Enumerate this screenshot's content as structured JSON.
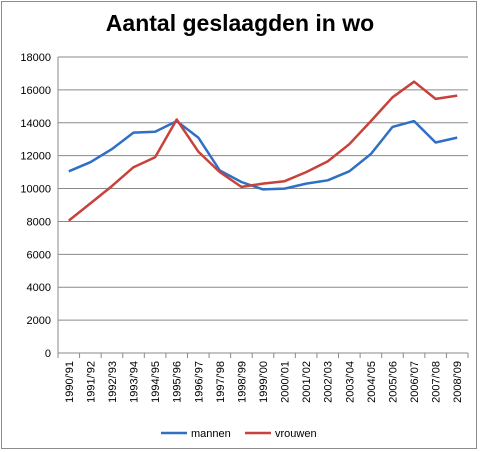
{
  "chart_data": {
    "type": "line",
    "title": "Aantal geslaagden in wo",
    "xlabel": "",
    "ylabel": "",
    "categories": [
      "1990/'91",
      "1991/'92",
      "1992/'93",
      "1993/'94",
      "1994/'95",
      "1995/'96",
      "1996/'97",
      "1997/'98",
      "1998/'99",
      "1999/'00",
      "2000/'01",
      "2001/'02",
      "2002/'03",
      "2003/'04",
      "2004/'05",
      "2005/'06",
      "2006/'07",
      "2007/'08",
      "2008/'09"
    ],
    "ylim": [
      0,
      18000
    ],
    "yticks": [
      0,
      2000,
      4000,
      6000,
      8000,
      10000,
      12000,
      14000,
      16000,
      18000
    ],
    "grid": true,
    "legend": "bottom",
    "series": [
      {
        "name": "mannen",
        "color": "#2f6fc4",
        "values": [
          11050,
          11600,
          12400,
          13400,
          13450,
          14100,
          13100,
          11100,
          10400,
          9950,
          10000,
          10300,
          10500,
          11050,
          12100,
          13750,
          14100,
          12800,
          13100
        ]
      },
      {
        "name": "vrouwen",
        "color": "#c8413b",
        "values": [
          8050,
          9100,
          10150,
          11300,
          11900,
          14200,
          12250,
          11000,
          10100,
          10300,
          10450,
          11000,
          11650,
          12700,
          14100,
          15550,
          16500,
          15450,
          15650
        ]
      }
    ]
  }
}
